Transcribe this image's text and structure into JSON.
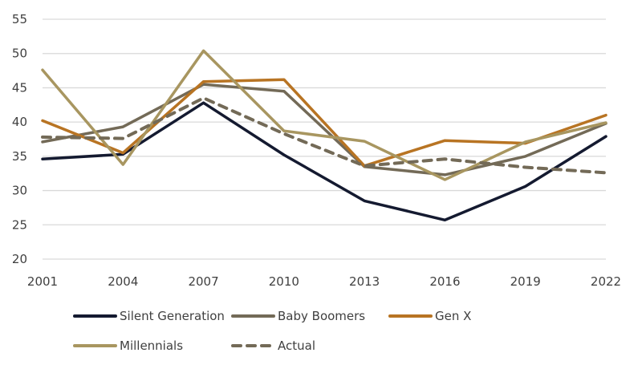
{
  "chart_data": {
    "type": "line",
    "title": "",
    "xlabel": "",
    "ylabel": "",
    "x": [
      "2001",
      "2004",
      "2007",
      "2010",
      "2013",
      "2016",
      "2019",
      "2022"
    ],
    "ylim": [
      20,
      55
    ],
    "yticks": [
      20,
      25,
      30,
      35,
      40,
      45,
      50,
      55
    ],
    "grid": true,
    "legend_position": "bottom",
    "series": [
      {
        "name": "Silent Generation",
        "color": "#141a30",
        "dashed": false,
        "values": [
          34.6,
          35.3,
          42.8,
          35.2,
          28.5,
          25.7,
          30.6,
          37.9
        ]
      },
      {
        "name": "Baby Boomers",
        "color": "#736a57",
        "dashed": false,
        "values": [
          37.1,
          39.3,
          45.5,
          44.5,
          33.5,
          32.3,
          35.0,
          39.8
        ]
      },
      {
        "name": "Gen X",
        "color": "#b87423",
        "dashed": false,
        "values": [
          40.2,
          35.5,
          45.9,
          46.2,
          33.6,
          37.3,
          36.9,
          41.0
        ]
      },
      {
        "name": "Millennials",
        "color": "#a89660",
        "dashed": false,
        "values": [
          47.6,
          33.8,
          50.4,
          38.7,
          37.2,
          31.6,
          37.1,
          39.9
        ]
      },
      {
        "name": "Actual",
        "color": "#736a57",
        "dashed": true,
        "values": [
          37.8,
          37.6,
          43.5,
          38.3,
          33.6,
          34.6,
          33.4,
          32.6
        ]
      }
    ]
  }
}
